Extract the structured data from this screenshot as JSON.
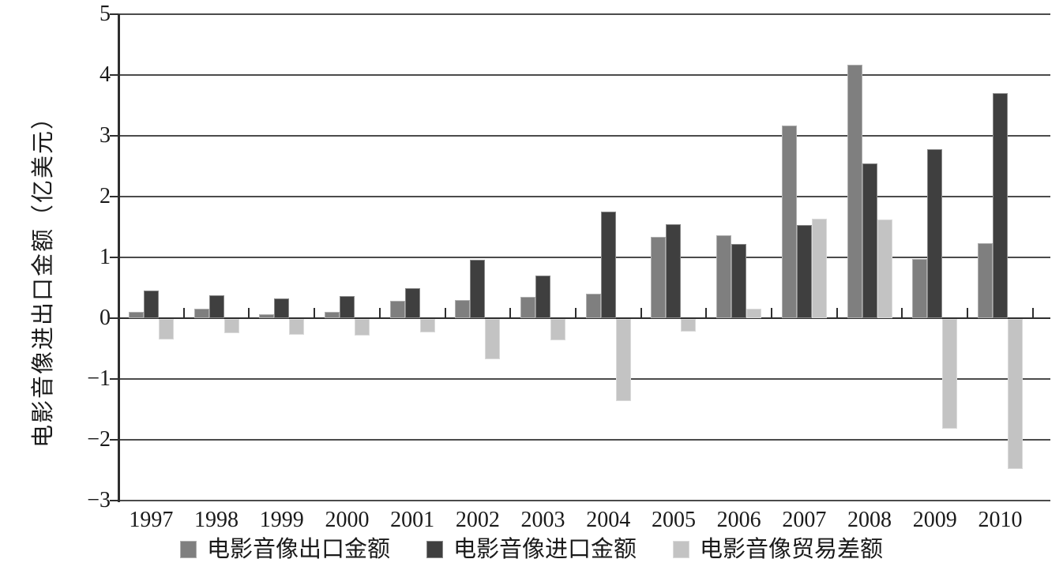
{
  "chart_data": {
    "type": "bar",
    "title": "",
    "xlabel": "",
    "ylabel": "电影音像进出口金额（亿美元）",
    "ylim": [
      -3,
      5
    ],
    "yticks": [
      5,
      4,
      3,
      2,
      1,
      0,
      -1,
      -2,
      -3
    ],
    "ytick_labels": [
      "5",
      "4",
      "3",
      "2",
      "1",
      "0",
      "−1",
      "−2",
      "−3"
    ],
    "grid": true,
    "legend_position": "bottom",
    "categories": [
      "1997",
      "1998",
      "1999",
      "2000",
      "2001",
      "2002",
      "2003",
      "2004",
      "2005",
      "2006",
      "2007",
      "2008",
      "2009",
      "2010"
    ],
    "series": [
      {
        "name": "电影音像出口金额",
        "color": "#7f7f7f",
        "values": [
          0.11,
          0.15,
          0.07,
          0.1,
          0.28,
          0.3,
          0.35,
          0.4,
          1.34,
          1.37,
          3.17,
          4.17,
          0.97,
          1.23
        ]
      },
      {
        "name": "电影音像进口金额",
        "color": "#3f3f3f",
        "values": [
          0.45,
          0.38,
          0.33,
          0.37,
          0.5,
          0.96,
          0.7,
          1.75,
          1.55,
          1.22,
          1.53,
          2.55,
          2.78,
          3.7
        ]
      },
      {
        "name": "电影音像贸易差额",
        "color": "#c3c3c3",
        "values": [
          -0.34,
          -0.23,
          -0.26,
          -0.27,
          -0.22,
          -0.66,
          -0.35,
          -1.35,
          -0.21,
          0.15,
          1.64,
          1.62,
          -1.81,
          -2.47
        ]
      }
    ]
  }
}
